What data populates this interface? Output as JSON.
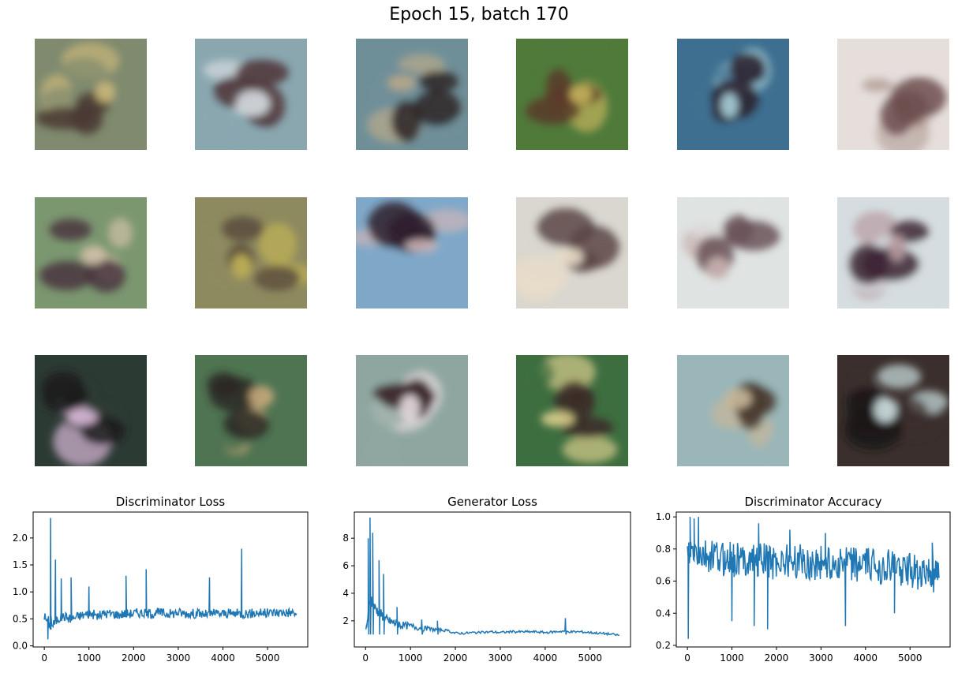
{
  "figure": {
    "title": "Epoch 15, batch 170"
  },
  "samples": [
    {
      "bg": "#7f8a6e",
      "accent": "#c9b77a",
      "dark": "#4b3a33"
    },
    {
      "bg": "#8aa7b0",
      "accent": "#d6dde0",
      "dark": "#4e3437"
    },
    {
      "bg": "#6f8f98",
      "accent": "#b9a98a",
      "dark": "#2e2526"
    },
    {
      "bg": "#4f7a3a",
      "accent": "#c5b35c",
      "dark": "#5a3b2a"
    },
    {
      "bg": "#3e6f90",
      "accent": "#a8d2dc",
      "dark": "#2c1d2a"
    },
    {
      "bg": "#e6dedb",
      "accent": "#b9a59f",
      "dark": "#6e5050"
    },
    {
      "bg": "#7b9770",
      "accent": "#d1c0a8",
      "dark": "#4a3540"
    },
    {
      "bg": "#8e8a5f",
      "accent": "#c2b356",
      "dark": "#5b4e3e"
    },
    {
      "bg": "#7fa8c8",
      "accent": "#cdb5b8",
      "dark": "#2f1f2c"
    },
    {
      "bg": "#d9d7cf",
      "accent": "#e8dcc9",
      "dark": "#5c4546"
    },
    {
      "bg": "#dfe3e2",
      "accent": "#c8b3b0",
      "dark": "#6a5258"
    },
    {
      "bg": "#d5dde0",
      "accent": "#b69aa0",
      "dark": "#3c2434"
    },
    {
      "bg": "#2c3a34",
      "accent": "#d9b8d8",
      "dark": "#1c1c1c"
    },
    {
      "bg": "#4f7452",
      "accent": "#c5a87a",
      "dark": "#2c2824"
    },
    {
      "bg": "#8fa6a0",
      "accent": "#e7dde0",
      "dark": "#3f2a2f"
    },
    {
      "bg": "#3d6e40",
      "accent": "#d9cd8c",
      "dark": "#3c2c28"
    },
    {
      "bg": "#9ab6b8",
      "accent": "#c8b79a",
      "dark": "#4b3c30"
    },
    {
      "bg": "#3a2f2c",
      "accent": "#cfe2e4",
      "dark": "#1b1414"
    }
  ],
  "chart_data": [
    {
      "type": "line",
      "title": "Discriminator Loss",
      "xlim": [
        -250,
        5900
      ],
      "ylim": [
        -0.02,
        2.48
      ],
      "xticks": [
        0,
        1000,
        2000,
        3000,
        4000,
        5000
      ],
      "yticks": [
        0.0,
        0.5,
        1.0,
        1.5,
        2.0
      ],
      "ytick_labels": [
        "0.0",
        "0.5",
        "1.0",
        "1.5",
        "2.0"
      ],
      "color": "#1f77b4",
      "x": [
        0,
        150,
        300,
        450,
        600,
        750,
        900,
        1050,
        1200,
        1350,
        1500,
        1650,
        1800,
        1950,
        2100,
        2250,
        2400,
        2550,
        2700,
        2850,
        3000,
        3150,
        3300,
        3450,
        3600,
        3750,
        3900,
        4050,
        4200,
        4350,
        4500,
        4650,
        4800,
        4950,
        5100,
        5250,
        5400,
        5500,
        5650
      ],
      "y": [
        0.55,
        0.35,
        0.5,
        0.55,
        0.5,
        0.55,
        0.58,
        0.6,
        0.55,
        0.6,
        0.6,
        0.58,
        0.6,
        0.6,
        0.62,
        0.6,
        0.6,
        0.62,
        0.6,
        0.6,
        0.62,
        0.6,
        0.6,
        0.6,
        0.58,
        0.6,
        0.6,
        0.6,
        0.6,
        0.6,
        0.6,
        0.6,
        0.62,
        0.6,
        0.62,
        0.62,
        0.62,
        0.62,
        0.6
      ],
      "spikes": [
        [
          80,
          0.12
        ],
        [
          140,
          2.37
        ],
        [
          250,
          1.6
        ],
        [
          380,
          1.25
        ],
        [
          600,
          1.27
        ],
        [
          1000,
          1.1
        ],
        [
          1830,
          1.3
        ],
        [
          2280,
          1.42
        ],
        [
          3700,
          1.27
        ],
        [
          4420,
          1.8
        ]
      ]
    },
    {
      "type": "line",
      "title": "Generator Loss",
      "xlim": [
        -250,
        5900
      ],
      "ylim": [
        0.1,
        9.9
      ],
      "xticks": [
        0,
        1000,
        2000,
        3000,
        4000,
        5000
      ],
      "yticks": [
        2,
        4,
        6,
        8
      ],
      "ytick_labels": [
        "2",
        "4",
        "6",
        "8"
      ],
      "color": "#1f77b4",
      "x": [
        0,
        100,
        200,
        300,
        400,
        500,
        600,
        700,
        800,
        1000,
        1200,
        1400,
        1600,
        1800,
        2000,
        2200,
        2400,
        2600,
        2800,
        3000,
        3200,
        3400,
        3600,
        3800,
        4000,
        4200,
        4400,
        4600,
        4800,
        5000,
        5200,
        5400,
        5650
      ],
      "y": [
        1.0,
        3.5,
        3.0,
        2.6,
        2.3,
        2.0,
        1.9,
        1.8,
        1.7,
        1.6,
        1.5,
        1.4,
        1.35,
        1.3,
        1.1,
        1.1,
        1.15,
        1.15,
        1.2,
        1.15,
        1.2,
        1.2,
        1.2,
        1.2,
        1.15,
        1.2,
        1.25,
        1.2,
        1.2,
        1.15,
        1.1,
        1.05,
        0.95
      ],
      "spikes": [
        [
          60,
          8.0
        ],
        [
          100,
          9.5
        ],
        [
          160,
          8.4
        ],
        [
          300,
          6.4
        ],
        [
          400,
          5.4
        ],
        [
          700,
          3.0
        ],
        [
          1250,
          2.1
        ],
        [
          1600,
          2.0
        ],
        [
          4450,
          2.2
        ]
      ]
    },
    {
      "type": "line",
      "title": "Discriminator Accuracy",
      "xlim": [
        -250,
        5900
      ],
      "ylim": [
        0.19,
        1.03
      ],
      "xticks": [
        0,
        1000,
        2000,
        3000,
        4000,
        5000
      ],
      "yticks": [
        0.2,
        0.4,
        0.6,
        0.8,
        1.0
      ],
      "ytick_labels": [
        "0.2",
        "0.4",
        "0.6",
        "0.8",
        "1.0"
      ],
      "color": "#1f77b4",
      "x": [
        0,
        150,
        300,
        450,
        600,
        750,
        900,
        1050,
        1200,
        1350,
        1500,
        1650,
        1800,
        1950,
        2100,
        2250,
        2400,
        2550,
        2700,
        2850,
        3000,
        3150,
        3300,
        3450,
        3600,
        3750,
        3900,
        4050,
        4200,
        4350,
        4500,
        4650,
        4800,
        4950,
        5100,
        5250,
        5400,
        5500,
        5650
      ],
      "y": [
        0.75,
        0.78,
        0.75,
        0.74,
        0.75,
        0.74,
        0.74,
        0.73,
        0.73,
        0.74,
        0.73,
        0.74,
        0.72,
        0.72,
        0.73,
        0.72,
        0.72,
        0.72,
        0.71,
        0.71,
        0.72,
        0.71,
        0.71,
        0.71,
        0.7,
        0.7,
        0.7,
        0.7,
        0.7,
        0.69,
        0.69,
        0.68,
        0.68,
        0.67,
        0.66,
        0.65,
        0.64,
        0.63,
        0.62
      ],
      "spikes": [
        [
          20,
          0.24
        ],
        [
          60,
          1.0
        ],
        [
          150,
          0.99
        ],
        [
          250,
          1.0
        ],
        [
          1000,
          0.35
        ],
        [
          1500,
          0.32
        ],
        [
          1600,
          0.96
        ],
        [
          1800,
          0.3
        ],
        [
          2300,
          0.92
        ],
        [
          3100,
          0.9
        ],
        [
          3550,
          0.32
        ],
        [
          4650,
          0.4
        ],
        [
          5500,
          0.84
        ]
      ]
    }
  ]
}
